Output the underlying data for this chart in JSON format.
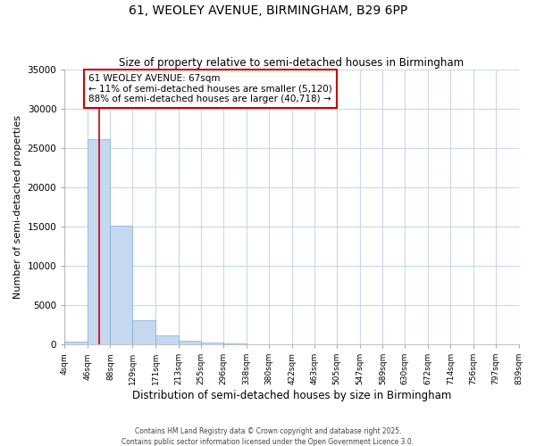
{
  "title1": "61, WEOLEY AVENUE, BIRMINGHAM, B29 6PP",
  "title2": "Size of property relative to semi-detached houses in Birmingham",
  "xlabel": "Distribution of semi-detached houses by size in Birmingham",
  "ylabel": "Number of semi-detached properties",
  "bin_edges": [
    4,
    46,
    88,
    129,
    171,
    213,
    255,
    296,
    338,
    380,
    422,
    463,
    505,
    547,
    589,
    630,
    672,
    714,
    756,
    797,
    839
  ],
  "bin_counts": [
    400,
    26100,
    15100,
    3050,
    1100,
    500,
    280,
    100,
    40,
    15,
    10,
    5,
    3,
    2,
    1,
    1,
    0,
    0,
    0,
    0
  ],
  "bar_color": "#c5d8f0",
  "bar_edge_color": "#7fafd4",
  "property_sqm": 67,
  "property_line_color": "#cc0000",
  "annotation_title": "61 WEOLEY AVENUE: 67sqm",
  "annotation_line1": "← 11% of semi-detached houses are smaller (5,120)",
  "annotation_line2": "88% of semi-detached houses are larger (40,718) →",
  "annotation_box_color": "#ffffff",
  "annotation_border_color": "#cc0000",
  "ylim_max": 35000,
  "yticks": [
    0,
    5000,
    10000,
    15000,
    20000,
    25000,
    30000,
    35000
  ],
  "footer": "Contains HM Land Registry data © Crown copyright and database right 2025.\nContains public sector information licensed under the Open Government Licence 3.0.",
  "fig_background": "#ffffff",
  "plot_background": "#ffffff",
  "grid_color": "#c8d8ee"
}
